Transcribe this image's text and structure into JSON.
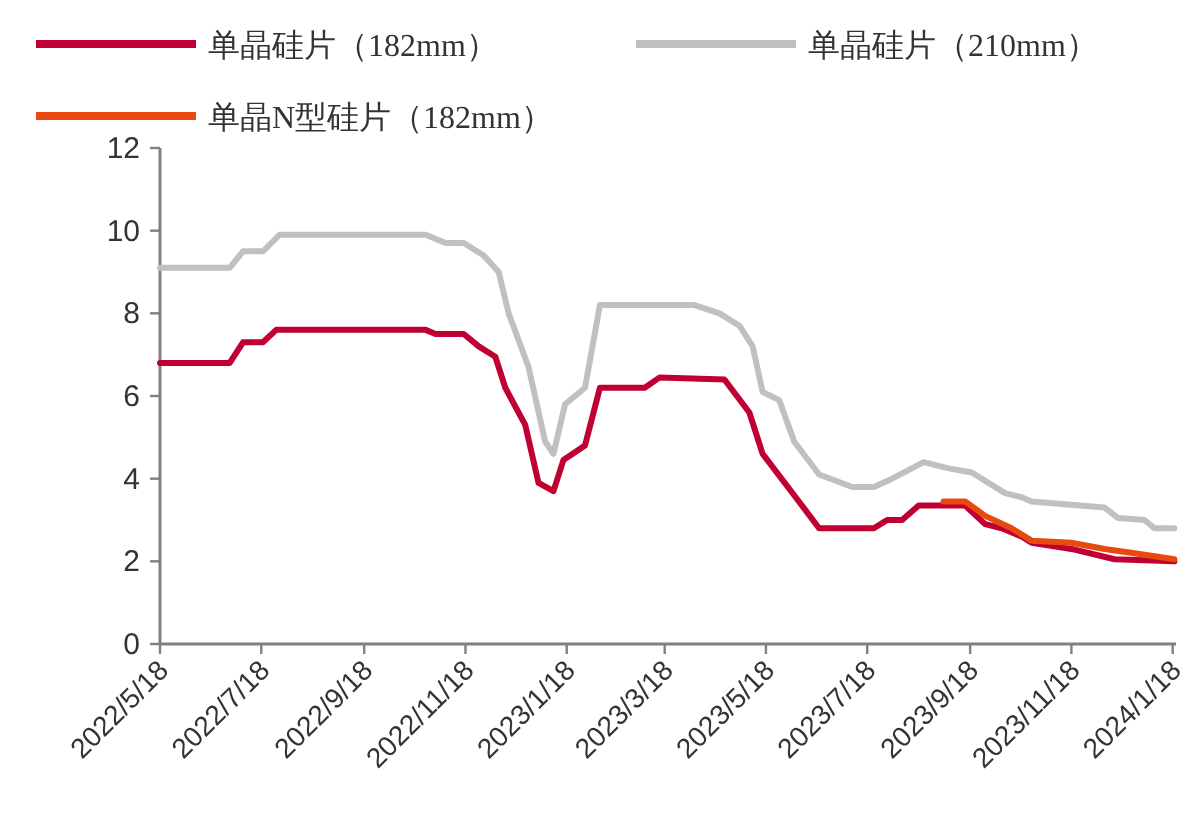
{
  "chart_data": {
    "type": "line",
    "legend": "top",
    "grid": false,
    "marker": "none",
    "line_style": "solid",
    "xlim": [
      "2022-05-18",
      "2024-01-20"
    ],
    "xticks": [
      {
        "value": "2022-05-18",
        "label": "2022/5/18"
      },
      {
        "value": "2022-07-18",
        "label": "2022/7/18"
      },
      {
        "value": "2022-09-18",
        "label": "2022/9/18"
      },
      {
        "value": "2022-11-18",
        "label": "2022/11/18"
      },
      {
        "value": "2023-01-18",
        "label": "2023/1/18"
      },
      {
        "value": "2023-03-18",
        "label": "2023/3/18"
      },
      {
        "value": "2023-05-18",
        "label": "2023/5/18"
      },
      {
        "value": "2023-07-18",
        "label": "2023/7/18"
      },
      {
        "value": "2023-09-18",
        "label": "2023/9/18"
      },
      {
        "value": "2023-11-18",
        "label": "2023/11/18"
      },
      {
        "value": "2024-01-18",
        "label": "2024/1/18"
      }
    ],
    "ylim": [
      0,
      12
    ],
    "yticks": [
      0,
      2,
      4,
      6,
      8,
      10,
      12
    ],
    "series": [
      {
        "name": "单晶硅片（182mm）",
        "color": "#c00032",
        "x": [
          "2022-05-18",
          "2022-06-29",
          "2022-07-07",
          "2022-07-19",
          "2022-07-27",
          "2022-10-25",
          "2022-10-31",
          "2022-11-17",
          "2022-11-26",
          "2022-12-06",
          "2022-12-12",
          "2022-12-24",
          "2023-01-01",
          "2023-01-10",
          "2023-01-16",
          "2023-01-29",
          "2023-02-07",
          "2023-03-06",
          "2023-03-15",
          "2023-04-23",
          "2023-05-08",
          "2023-05-16",
          "2023-06-04",
          "2023-06-19",
          "2023-07-22",
          "2023-07-30",
          "2023-08-08",
          "2023-08-18",
          "2023-09-15",
          "2023-09-27",
          "2023-10-07",
          "2023-10-19",
          "2023-10-25",
          "2023-11-18",
          "2023-12-14",
          "2024-01-19"
        ],
        "values": [
          6.8,
          6.8,
          7.3,
          7.3,
          7.6,
          7.6,
          7.5,
          7.5,
          7.2,
          6.95,
          6.2,
          5.3,
          3.9,
          3.7,
          4.45,
          4.8,
          6.2,
          6.2,
          6.45,
          6.4,
          5.6,
          4.6,
          3.6,
          2.8,
          2.8,
          3.0,
          3.0,
          3.35,
          3.35,
          2.9,
          2.8,
          2.6,
          2.45,
          2.3,
          2.05,
          2.0
        ]
      },
      {
        "name": "单晶硅片（210mm）",
        "color": "#c0c0c0",
        "x": [
          "2022-05-18",
          "2022-06-29",
          "2022-07-07",
          "2022-07-19",
          "2022-07-29",
          "2022-10-25",
          "2022-11-06",
          "2022-11-17",
          "2022-11-29",
          "2022-12-08",
          "2022-12-14",
          "2022-12-26",
          "2023-01-05",
          "2023-01-10",
          "2023-01-17",
          "2023-01-29",
          "2023-02-07",
          "2023-04-05",
          "2023-04-20",
          "2023-05-02",
          "2023-05-10",
          "2023-05-16",
          "2023-05-26",
          "2023-06-04",
          "2023-06-19",
          "2023-07-09",
          "2023-07-22",
          "2023-08-02",
          "2023-08-21",
          "2023-09-05",
          "2023-09-19",
          "2023-10-09",
          "2023-10-19",
          "2023-10-25",
          "2023-12-08",
          "2023-12-16",
          "2024-01-01",
          "2024-01-07",
          "2024-01-19"
        ],
        "values": [
          9.1,
          9.1,
          9.5,
          9.5,
          9.9,
          9.9,
          9.7,
          9.7,
          9.4,
          9.0,
          8.0,
          6.7,
          4.9,
          4.6,
          5.8,
          6.2,
          8.2,
          8.2,
          8.0,
          7.7,
          7.2,
          6.1,
          5.9,
          4.9,
          4.1,
          3.8,
          3.8,
          4.0,
          4.4,
          4.25,
          4.15,
          3.65,
          3.55,
          3.45,
          3.3,
          3.05,
          3.0,
          2.8,
          2.8
        ]
      },
      {
        "name": "单晶N型硅片（182mm）",
        "color": "#e8490f",
        "x": [
          "2023-09-02",
          "2023-09-15",
          "2023-09-27",
          "2023-10-13",
          "2023-10-25",
          "2023-11-18",
          "2023-12-08",
          "2023-12-25",
          "2024-01-19"
        ],
        "values": [
          3.45,
          3.45,
          3.1,
          2.8,
          2.5,
          2.45,
          2.3,
          2.2,
          2.05
        ]
      }
    ]
  }
}
